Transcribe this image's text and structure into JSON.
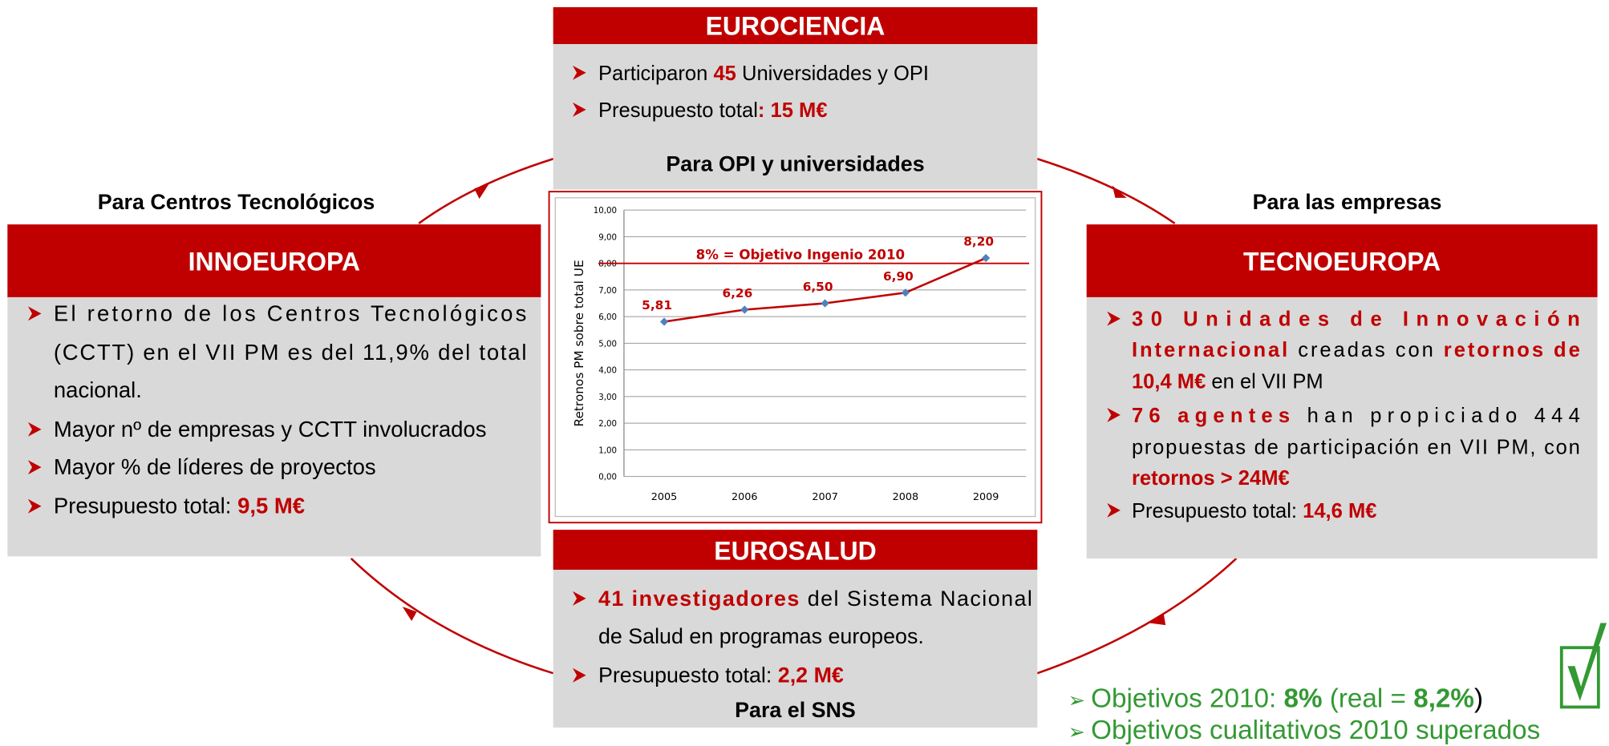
{
  "eurociencia": {
    "title": "EUROCIENCIA",
    "bullets": [
      [
        "Participaron ",
        "45",
        " Universidades y OPI"
      ],
      [
        "Presupuesto total",
        ": 15 M€"
      ]
    ],
    "target": "Para OPI y universidades"
  },
  "innoeuropa": {
    "target": "Para Centros Tecnológicos",
    "title": "INNOEUROPA",
    "lines": [
      "El retorno de los Centros Tecnológicos",
      "(CCTT) en el VII PM es del 11,9% del total",
      "nacional.",
      "Mayor nº de empresas y CCTT involucrados",
      "Mayor % de líderes de proyectos",
      "Presupuesto total: "
    ],
    "budget": "9,5 M€"
  },
  "tecnoeuropa": {
    "target": "Para las empresas",
    "title": "TECNOEUROPA",
    "lines": [
      [
        "30 Unidades de Innovación"
      ],
      [
        "Internacional",
        " creadas con ",
        "retornos de"
      ],
      [
        "10,4 M€",
        " en el VII PM"
      ],
      [
        "76 agentes",
        " han propiciado 444"
      ],
      [
        "propuestas de participación en VII PM, con"
      ],
      [
        "retornos > 24M€"
      ],
      [
        "Presupuesto total: ",
        "14,6 M€"
      ]
    ]
  },
  "eurosalud": {
    "title": "EUROSALUD",
    "lines": [
      [
        "41 investigadores",
        " del Sistema Nacional"
      ],
      [
        "de Salud en programas europeos."
      ],
      [
        "Presupuesto total: ",
        "2,2 M€"
      ]
    ],
    "target": "Para el SNS"
  },
  "summary": [
    [
      "Objetivos 2010: ",
      "8%",
      " (real = ",
      "8,2%",
      ")"
    ],
    [
      "Objetivos cualitativos 2010 superados"
    ]
  ],
  "chart_data": {
    "type": "line",
    "y_label": "Retronos PM sobre total UE",
    "categories": [
      "2005",
      "2006",
      "2007",
      "2008",
      "2009"
    ],
    "series": [
      {
        "name": "Retornos",
        "color": "#c00000",
        "marker_color": "#4f81bd",
        "values": [
          5.81,
          6.26,
          6.5,
          6.9,
          8.2
        ],
        "value_labels": [
          "5,81",
          "6,26",
          "6,50",
          "6,90",
          "8,20"
        ]
      }
    ],
    "target": {
      "value": 8,
      "label": "8% = Objetivo Ingenio 2010"
    },
    "ylim": [
      0,
      10
    ],
    "yticks": [
      {
        "value": 0,
        "label": "0,00"
      },
      {
        "value": 1,
        "label": "1,00"
      },
      {
        "value": 2,
        "label": "2,00"
      },
      {
        "value": 3,
        "label": "3,00"
      },
      {
        "value": 4,
        "label": "4,00"
      },
      {
        "value": 5,
        "label": "5,00"
      },
      {
        "value": 6,
        "label": "6,00"
      },
      {
        "value": 7,
        "label": "7,00"
      },
      {
        "value": 8,
        "label": "8,00"
      },
      {
        "value": 9,
        "label": "9,00"
      },
      {
        "value": 10,
        "label": "10,00"
      }
    ],
    "grid": true
  }
}
